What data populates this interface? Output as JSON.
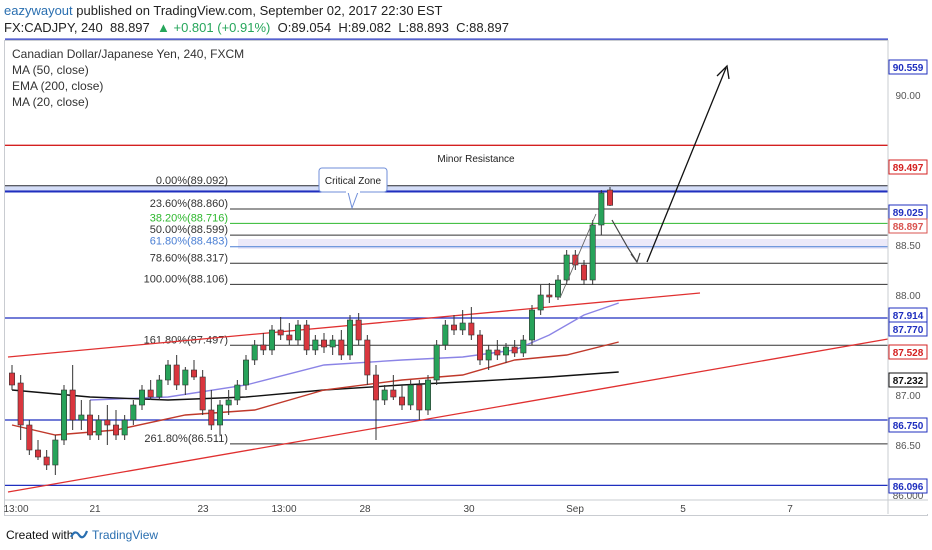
{
  "header": {
    "author": "eazywayout",
    "published_text": "published on TradingView.com, September 02, 2017 22:30 EST",
    "symbol": "FX:CADJPY, 240",
    "last": "88.897",
    "change": "+0.801 (+0.91%)",
    "open": "O:89.054",
    "high": "H:89.082",
    "low": "L:88.893",
    "close": "C:88.897"
  },
  "legend": {
    "title": "Canadian Dollar/Japanese Yen, 240, FXCM",
    "ma50": "MA (50, close)",
    "ema200": "EMA (200, close)",
    "ma20": "MA (20, close)"
  },
  "footer": {
    "created_with": "Created with",
    "brand": "TradingView"
  },
  "chart_data": {
    "type": "candlestick",
    "title": "Canadian Dollar/Japanese Yen, 240, FXCM",
    "ylim": [
      86.0,
      90.8
    ],
    "price_axis_ticks": [
      86.0,
      86.5,
      87.0,
      88.0,
      88.5,
      90.0
    ],
    "time_axis_labels": [
      "13:00",
      "21",
      "23",
      "13:00",
      "28",
      "30",
      "Sep",
      "5",
      "7"
    ],
    "price_tags": [
      {
        "value": "90.559",
        "color": "#1f2fbf"
      },
      {
        "value": "89.497",
        "color": "#d42020"
      },
      {
        "value": "89.025",
        "color": "#1f2fbf"
      },
      {
        "value": "88.897",
        "color": "#d9534f"
      },
      {
        "value": "87.914",
        "color": "#1f2fbf"
      },
      {
        "value": "87.770",
        "color": "#1f2fbf"
      },
      {
        "value": "87.528",
        "color": "#d42020"
      },
      {
        "value": "87.232",
        "color": "#111111"
      },
      {
        "value": "86.750",
        "color": "#1f2fbf"
      },
      {
        "value": "86.096",
        "color": "#1f2fbf"
      }
    ],
    "horizontal_levels": [
      {
        "price": 90.559,
        "color": "#1f2fbf"
      },
      {
        "price": 89.497,
        "color": "#d42020"
      },
      {
        "price": 87.77,
        "color": "#1f2fbf"
      },
      {
        "price": 86.75,
        "color": "#1f2fbf"
      },
      {
        "price": 86.096,
        "color": "#1f2fbf"
      }
    ],
    "fibonacci": [
      {
        "label": "0.00%(89.092)",
        "price": 89.092,
        "color": "#333333"
      },
      {
        "label": "23.60%(88.860)",
        "price": 88.86,
        "color": "#333333"
      },
      {
        "label": "38.20%(88.716)",
        "price": 88.716,
        "color": "#2eb82e"
      },
      {
        "label": "50.00%(88.599)",
        "price": 88.599,
        "color": "#333333"
      },
      {
        "label": "61.80%(88.483)",
        "price": 88.483,
        "color": "#4a7fd4"
      },
      {
        "label": "78.60%(88.317)",
        "price": 88.317,
        "color": "#333333"
      },
      {
        "label": "100.00%(88.106)",
        "price": 88.106,
        "color": "#333333"
      },
      {
        "label": "161.80%(87.497)",
        "price": 87.497,
        "color": "#333333"
      },
      {
        "label": "261.80%(86.511)",
        "price": 86.511,
        "color": "#333333"
      }
    ],
    "annotations": {
      "minor_resistance": "Minor Resistance",
      "critical_zone": "Critical Zone"
    },
    "candles": [
      {
        "o": 87.22,
        "h": 87.3,
        "l": 87.05,
        "c": 87.1
      },
      {
        "o": 87.12,
        "h": 87.2,
        "l": 86.55,
        "c": 86.7
      },
      {
        "o": 86.7,
        "h": 86.75,
        "l": 86.4,
        "c": 86.45
      },
      {
        "o": 86.45,
        "h": 86.55,
        "l": 86.35,
        "c": 86.38
      },
      {
        "o": 86.38,
        "h": 86.45,
        "l": 86.25,
        "c": 86.3
      },
      {
        "o": 86.3,
        "h": 86.6,
        "l": 86.2,
        "c": 86.55
      },
      {
        "o": 86.55,
        "h": 87.1,
        "l": 86.5,
        "c": 87.05
      },
      {
        "o": 87.05,
        "h": 87.3,
        "l": 86.65,
        "c": 86.75
      },
      {
        "o": 86.75,
        "h": 86.95,
        "l": 86.65,
        "c": 86.8
      },
      {
        "o": 86.8,
        "h": 86.95,
        "l": 86.55,
        "c": 86.6
      },
      {
        "o": 86.6,
        "h": 86.8,
        "l": 86.55,
        "c": 86.75
      },
      {
        "o": 86.75,
        "h": 86.9,
        "l": 86.5,
        "c": 86.7
      },
      {
        "o": 86.7,
        "h": 86.85,
        "l": 86.55,
        "c": 86.6
      },
      {
        "o": 86.6,
        "h": 86.8,
        "l": 86.55,
        "c": 86.75
      },
      {
        "o": 86.75,
        "h": 86.95,
        "l": 86.7,
        "c": 86.9
      },
      {
        "o": 86.9,
        "h": 87.1,
        "l": 86.85,
        "c": 87.05
      },
      {
        "o": 87.05,
        "h": 87.15,
        "l": 86.95,
        "c": 86.98
      },
      {
        "o": 86.98,
        "h": 87.2,
        "l": 86.95,
        "c": 87.15
      },
      {
        "o": 87.15,
        "h": 87.35,
        "l": 87.1,
        "c": 87.3
      },
      {
        "o": 87.3,
        "h": 87.4,
        "l": 87.05,
        "c": 87.1
      },
      {
        "o": 87.1,
        "h": 87.28,
        "l": 87.0,
        "c": 87.25
      },
      {
        "o": 87.25,
        "h": 87.35,
        "l": 87.15,
        "c": 87.18
      },
      {
        "o": 87.18,
        "h": 87.25,
        "l": 86.8,
        "c": 86.85
      },
      {
        "o": 86.85,
        "h": 87.05,
        "l": 86.65,
        "c": 86.7
      },
      {
        "o": 86.7,
        "h": 86.95,
        "l": 86.6,
        "c": 86.9
      },
      {
        "o": 86.9,
        "h": 87.05,
        "l": 86.8,
        "c": 86.95
      },
      {
        "o": 86.95,
        "h": 87.15,
        "l": 86.9,
        "c": 87.1
      },
      {
        "o": 87.1,
        "h": 87.4,
        "l": 87.05,
        "c": 87.35
      },
      {
        "o": 87.35,
        "h": 87.55,
        "l": 87.3,
        "c": 87.5
      },
      {
        "o": 87.5,
        "h": 87.62,
        "l": 87.4,
        "c": 87.45
      },
      {
        "o": 87.45,
        "h": 87.7,
        "l": 87.4,
        "c": 87.65
      },
      {
        "o": 87.65,
        "h": 87.78,
        "l": 87.55,
        "c": 87.6
      },
      {
        "o": 87.6,
        "h": 87.72,
        "l": 87.5,
        "c": 87.55
      },
      {
        "o": 87.55,
        "h": 87.75,
        "l": 87.5,
        "c": 87.7
      },
      {
        "o": 87.7,
        "h": 87.75,
        "l": 87.4,
        "c": 87.45
      },
      {
        "o": 87.45,
        "h": 87.6,
        "l": 87.4,
        "c": 87.55
      },
      {
        "o": 87.55,
        "h": 87.62,
        "l": 87.42,
        "c": 87.48
      },
      {
        "o": 87.48,
        "h": 87.6,
        "l": 87.4,
        "c": 87.55
      },
      {
        "o": 87.55,
        "h": 87.65,
        "l": 87.35,
        "c": 87.4
      },
      {
        "o": 87.4,
        "h": 87.8,
        "l": 87.35,
        "c": 87.75
      },
      {
        "o": 87.75,
        "h": 87.82,
        "l": 87.5,
        "c": 87.55
      },
      {
        "o": 87.55,
        "h": 87.6,
        "l": 87.1,
        "c": 87.2
      },
      {
        "o": 87.2,
        "h": 87.3,
        "l": 86.55,
        "c": 86.95
      },
      {
        "o": 86.95,
        "h": 87.1,
        "l": 86.9,
        "c": 87.05
      },
      {
        "o": 87.05,
        "h": 87.2,
        "l": 86.95,
        "c": 86.98
      },
      {
        "o": 86.98,
        "h": 87.1,
        "l": 86.85,
        "c": 86.9
      },
      {
        "o": 86.9,
        "h": 87.15,
        "l": 86.85,
        "c": 87.1
      },
      {
        "o": 87.1,
        "h": 87.15,
        "l": 86.75,
        "c": 86.85
      },
      {
        "o": 86.85,
        "h": 87.2,
        "l": 86.8,
        "c": 87.15
      },
      {
        "o": 87.15,
        "h": 87.55,
        "l": 87.1,
        "c": 87.5
      },
      {
        "o": 87.5,
        "h": 87.75,
        "l": 87.45,
        "c": 87.7
      },
      {
        "o": 87.7,
        "h": 87.8,
        "l": 87.6,
        "c": 87.65
      },
      {
        "o": 87.65,
        "h": 87.85,
        "l": 87.6,
        "c": 87.72
      },
      {
        "o": 87.72,
        "h": 87.88,
        "l": 87.55,
        "c": 87.6
      },
      {
        "o": 87.6,
        "h": 87.65,
        "l": 87.3,
        "c": 87.35
      },
      {
        "o": 87.35,
        "h": 87.5,
        "l": 87.25,
        "c": 87.45
      },
      {
        "o": 87.45,
        "h": 87.55,
        "l": 87.35,
        "c": 87.4
      },
      {
        "o": 87.4,
        "h": 87.52,
        "l": 87.32,
        "c": 87.48
      },
      {
        "o": 87.48,
        "h": 87.55,
        "l": 87.38,
        "c": 87.42
      },
      {
        "o": 87.42,
        "h": 87.6,
        "l": 87.38,
        "c": 87.55
      },
      {
        "o": 87.55,
        "h": 87.9,
        "l": 87.5,
        "c": 87.85
      },
      {
        "o": 87.85,
        "h": 88.1,
        "l": 87.8,
        "c": 88.0
      },
      {
        "o": 88.0,
        "h": 88.12,
        "l": 87.92,
        "c": 87.98
      },
      {
        "o": 87.98,
        "h": 88.2,
        "l": 87.95,
        "c": 88.15
      },
      {
        "o": 88.15,
        "h": 88.45,
        "l": 88.1,
        "c": 88.4
      },
      {
        "o": 88.4,
        "h": 88.45,
        "l": 88.25,
        "c": 88.3
      },
      {
        "o": 88.3,
        "h": 88.35,
        "l": 88.1,
        "c": 88.15
      },
      {
        "o": 88.15,
        "h": 88.75,
        "l": 88.1,
        "c": 88.7
      },
      {
        "o": 88.7,
        "h": 89.05,
        "l": 88.6,
        "c": 89.02
      },
      {
        "o": 89.05,
        "h": 89.08,
        "l": 88.89,
        "c": 88.897
      }
    ],
    "moving_averages": [
      {
        "name": "MA (50, close)",
        "color": "#8b84e6",
        "points": [
          [
            9,
            86.95
          ],
          [
            18,
            86.98
          ],
          [
            27,
            87.1
          ],
          [
            36,
            87.3
          ],
          [
            45,
            87.35
          ],
          [
            52,
            87.38
          ],
          [
            58,
            87.45
          ],
          [
            62,
            87.6
          ],
          [
            66,
            87.8
          ],
          [
            70,
            87.92
          ]
        ]
      },
      {
        "name": "EMA (200, close)",
        "color": "#111111",
        "points": [
          [
            0,
            87.05
          ],
          [
            9,
            86.98
          ],
          [
            18,
            86.95
          ],
          [
            27,
            86.98
          ],
          [
            36,
            87.05
          ],
          [
            45,
            87.1
          ],
          [
            54,
            87.14
          ],
          [
            62,
            87.18
          ],
          [
            70,
            87.23
          ]
        ]
      },
      {
        "name": "MA (20, close)",
        "color": "#c0392b",
        "points": [
          [
            0,
            86.7
          ],
          [
            5,
            86.6
          ],
          [
            12,
            86.65
          ],
          [
            20,
            86.8
          ],
          [
            28,
            86.85
          ],
          [
            36,
            87.05
          ],
          [
            45,
            87.15
          ],
          [
            52,
            87.2
          ],
          [
            58,
            87.35
          ],
          [
            64,
            87.4
          ],
          [
            70,
            87.53
          ]
        ]
      }
    ]
  }
}
